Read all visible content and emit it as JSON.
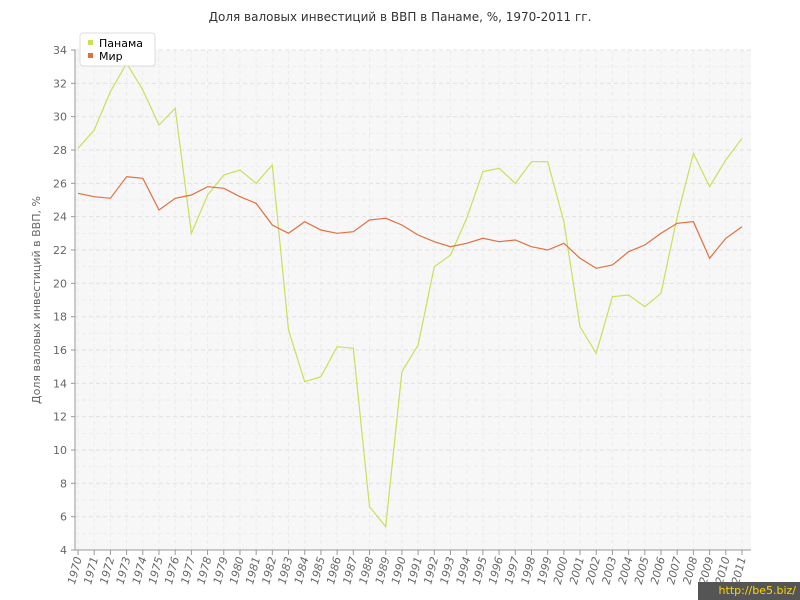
{
  "chart_data": {
    "type": "line",
    "title": "Доля валовых инвестиций в ВВП в Панаме, %, 1970-2011 гг.",
    "xlabel": "",
    "ylabel": "Доля валовых инвестиций в ВВП, %",
    "ylim": [
      4,
      34
    ],
    "yticks": [
      4,
      6,
      8,
      10,
      12,
      14,
      16,
      18,
      20,
      22,
      24,
      26,
      28,
      30,
      32,
      34
    ],
    "categories": [
      "1970",
      "1971",
      "1972",
      "1973",
      "1974",
      "1975",
      "1976",
      "1977",
      "1978",
      "1979",
      "1980",
      "1981",
      "1982",
      "1983",
      "1984",
      "1985",
      "1986",
      "1987",
      "1988",
      "1989",
      "1990",
      "1991",
      "1992",
      "1993",
      "1994",
      "1995",
      "1996",
      "1997",
      "1998",
      "1999",
      "2000",
      "2001",
      "2002",
      "2003",
      "2004",
      "2005",
      "2006",
      "2007",
      "2008",
      "2009",
      "2010",
      "2011"
    ],
    "grid": true,
    "legend_position": "top-left",
    "series": [
      {
        "name": "Панама",
        "color": "#c8e05a",
        "values": [
          28.1,
          29.2,
          31.5,
          33.2,
          31.6,
          29.5,
          30.5,
          23.0,
          25.3,
          26.5,
          26.8,
          26.0,
          27.1,
          17.2,
          14.1,
          14.4,
          16.2,
          16.1,
          6.6,
          5.4,
          14.7,
          16.3,
          21.0,
          21.7,
          23.9,
          26.7,
          26.9,
          26.0,
          27.3,
          27.3,
          23.7,
          17.4,
          15.8,
          19.2,
          19.3,
          18.6,
          19.4,
          24.0,
          27.8,
          25.8,
          27.4,
          28.7
        ]
      },
      {
        "name": "Мир",
        "color": "#e07040",
        "values": [
          25.4,
          25.2,
          25.1,
          26.4,
          26.3,
          24.4,
          25.1,
          25.3,
          25.8,
          25.7,
          25.2,
          24.8,
          23.5,
          23.0,
          23.7,
          23.2,
          23.0,
          23.1,
          23.8,
          23.9,
          23.5,
          22.9,
          22.5,
          22.2,
          22.4,
          22.7,
          22.5,
          22.6,
          22.2,
          22.0,
          22.4,
          21.5,
          20.9,
          21.1,
          21.9,
          22.3,
          23.0,
          23.6,
          23.7,
          21.5,
          22.7,
          23.4
        ]
      }
    ]
  },
  "watermark": "http://be5.biz/"
}
